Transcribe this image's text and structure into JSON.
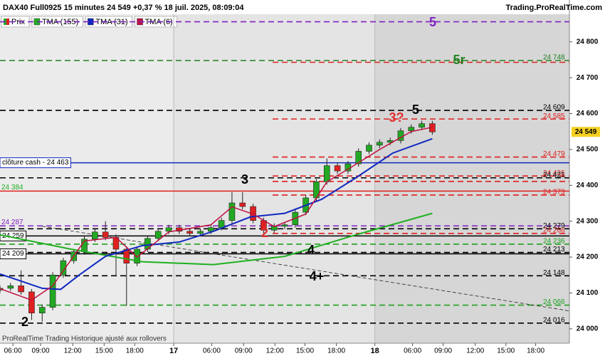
{
  "chart_data": {
    "type": "candlestick",
    "title": "DAX40 Full0925 15 minutes 24 549 +0,37 % 18 juil. 2025, 08:09:04",
    "source": "Trading.ProRealTime.com",
    "footnote": "ProRealTime Trading  Historique ajusté aux rollovers",
    "price_name": "Prix",
    "up_color": "#22a822",
    "down_color": "#e02020",
    "x": [
      0,
      4,
      8,
      12,
      16,
      20,
      24,
      28,
      32,
      36,
      40,
      44,
      48,
      52,
      56,
      60,
      64,
      68,
      72,
      76,
      80,
      84,
      88,
      92,
      96,
      100,
      104,
      108,
      112,
      116,
      120,
      124,
      128,
      132,
      136,
      140,
      144,
      148,
      152,
      156,
      160,
      164
    ],
    "open": [
      24108,
      24113,
      24120,
      24103,
      24044,
      24060,
      24150,
      24190,
      24215,
      24250,
      24270,
      24255,
      24222,
      24183,
      24222,
      24252,
      24272,
      24282,
      24272,
      24266,
      24272,
      24282,
      24302,
      24351,
      24341,
      24302,
      24275,
      24286,
      24290,
      24325,
      24365,
      24410,
      24455,
      24440,
      24460,
      24495,
      24512,
      24520,
      24525,
      24552,
      24562,
      24572
    ],
    "high": [
      24121,
      24128,
      24163,
      24111,
      24068,
      24158,
      24198,
      24223,
      24258,
      24278,
      24300,
      24263,
      24230,
      24230,
      24260,
      24280,
      24290,
      24290,
      24280,
      24280,
      24290,
      24310,
      24381,
      24381,
      24349,
      24310,
      24294,
      24298,
      24333,
      24373,
      24418,
      24475,
      24463,
      24468,
      24503,
      24520,
      24528,
      24533,
      24560,
      24570,
      24580,
      24580
    ],
    "low": [
      24100,
      24105,
      24095,
      24025,
      24020,
      24052,
      24142,
      24182,
      24207,
      24242,
      24247,
      24150,
      24064,
      24175,
      24214,
      24244,
      24264,
      24264,
      24258,
      24258,
      24264,
      24274,
      24294,
      24333,
      24294,
      24262,
      24267,
      24278,
      24282,
      24317,
      24357,
      24402,
      24432,
      24432,
      24452,
      24487,
      24504,
      24512,
      24517,
      24544,
      24554,
      24541
    ],
    "close": [
      24113,
      24120,
      24103,
      24044,
      24060,
      24150,
      24190,
      24215,
      24250,
      24270,
      24255,
      24222,
      24183,
      24222,
      24252,
      24272,
      24282,
      24272,
      24266,
      24272,
      24282,
      24302,
      24351,
      24341,
      24302,
      24275,
      24286,
      24290,
      24325,
      24365,
      24410,
      24455,
      24440,
      24460,
      24495,
      24512,
      24520,
      24525,
      24552,
      24562,
      24572,
      24549
    ],
    "series": [
      {
        "name": "TMA (155)",
        "color": "#20b020",
        "x": [
          0,
          27,
          54,
          81,
          108,
          135,
          164
        ],
        "values": [
          24262,
          24222,
          24187,
          24179,
          24202,
          24262,
          24322
        ]
      },
      {
        "name": "TMA (31)",
        "color": "#1028c0",
        "x": [
          0,
          8,
          16,
          23,
          30,
          40,
          54,
          68,
          81,
          95,
          108,
          122,
          135,
          149,
          164
        ],
        "values": [
          24153,
          24133,
          24113,
          24110,
          24150,
          24202,
          24232,
          24242,
          24272,
          24312,
          24322,
          24361,
          24421,
          24490,
          24530
        ]
      },
      {
        "name": "TMA (6)",
        "color": "#c01040",
        "x": [
          0,
          12,
          20,
          32,
          44,
          52,
          64,
          80,
          88,
          96,
          104,
          116,
          124,
          132,
          144,
          156,
          164
        ],
        "values": [
          24112,
          24080,
          24120,
          24245,
          24255,
          24200,
          24270,
          24290,
          24340,
          24320,
          24285,
          24320,
          24410,
          24445,
          24500,
          24550,
          24562
        ]
      }
    ],
    "levels": [
      {
        "value": 24856,
        "color": "#8020c0",
        "style": "dashed",
        "scope": "all"
      },
      {
        "value": 24748,
        "color": "#208020",
        "style": "dashed",
        "scope": "all",
        "label": "24 748",
        "side": "right"
      },
      {
        "value": 24743,
        "color": "#e02020",
        "style": "dashed",
        "scope": "recent"
      },
      {
        "value": 24609,
        "color": "#000000",
        "style": "dashed",
        "scope": "all",
        "label": "24 609",
        "side": "right"
      },
      {
        "value": 24585,
        "color": "#e02020",
        "style": "dashed",
        "scope": "recent",
        "label": "24 585",
        "side": "right"
      },
      {
        "value": 24549,
        "color": "#f5d020",
        "style": "box",
        "scope": "none",
        "label": "24 549",
        "side": "axis"
      },
      {
        "value": 24479,
        "color": "#e02020",
        "style": "dashed",
        "scope": "recent",
        "label": "24 479",
        "side": "right"
      },
      {
        "value": 24463,
        "color": "#1028c0",
        "style": "solid",
        "scope": "all",
        "label": "clôture cash -  24 463",
        "side": "left"
      },
      {
        "value": 24426,
        "color": "#e02020",
        "style": "dashed",
        "scope": "recent",
        "label": "24 426",
        "side": "right"
      },
      {
        "value": 24421,
        "color": "#000000",
        "style": "dashed",
        "scope": "all",
        "label": "24 421",
        "side": "right"
      },
      {
        "value": 24411,
        "color": "#e02020",
        "style": "dashed",
        "scope": "recent"
      },
      {
        "value": 24384,
        "color": "#e02020",
        "style": "solid",
        "scope": "all",
        "label": "24 384",
        "side": "left-plain",
        "label_color": "#20b020"
      },
      {
        "value": 24373,
        "color": "#e02020",
        "style": "dashed",
        "scope": "recent",
        "label": "24 373",
        "side": "right"
      },
      {
        "value": 24287,
        "color": "#8020c0",
        "style": "dashed",
        "scope": "all",
        "label": "24 287",
        "side": "left-plain"
      },
      {
        "value": 24279,
        "color": "#000000",
        "style": "dashed",
        "scope": "all",
        "label": "24 279",
        "side": "right"
      },
      {
        "value": 24266,
        "color": "#e02020",
        "style": "dashed",
        "scope": "recent",
        "label": "24 266",
        "side": "right"
      },
      {
        "value": 24259,
        "color": "#000000",
        "style": "solid",
        "scope": "all",
        "label": "24 259",
        "side": "left"
      },
      {
        "value": 24236,
        "color": "#20a020",
        "style": "dashed",
        "scope": "all",
        "label": "24 236",
        "side": "right"
      },
      {
        "value": 24213,
        "color": "#000000",
        "style": "dashed",
        "scope": "all",
        "label": "24 213",
        "side": "right"
      },
      {
        "value": 24209,
        "color": "#000000",
        "style": "solid",
        "scope": "all",
        "label": "24 209",
        "side": "left"
      },
      {
        "value": 24148,
        "color": "#000000",
        "style": "dashed",
        "scope": "all",
        "label": "24 148",
        "side": "right"
      },
      {
        "value": 24066,
        "color": "#20a020",
        "style": "dashed",
        "scope": "all",
        "label": "24 066",
        "side": "right"
      },
      {
        "value": 24016,
        "color": "#000000",
        "style": "dashed",
        "scope": "all",
        "label": "24 016",
        "side": "right"
      }
    ],
    "trendline": {
      "x": [
        16,
        216
      ],
      "values": [
        24286,
        24050
      ]
    },
    "annotations": [
      {
        "text": "2",
        "color": "#000000"
      },
      {
        "text": "5",
        "color": "#8020c0"
      },
      {
        "text": "5r",
        "color": "#208020"
      },
      {
        "text": "3",
        "color": "#000000"
      },
      {
        "text": "2",
        "color": "#e03030"
      },
      {
        "text": "3?",
        "color": "#e03030"
      },
      {
        "text": "5",
        "color": "#000000"
      },
      {
        "text": "4",
        "color": "#000000"
      },
      {
        "text": "4+",
        "color": "#000000"
      }
    ],
    "xlim": [
      0,
      216
    ],
    "ylim": [
      23960,
      24877
    ],
    "xticks": [
      {
        "value": 4.9,
        "label": "06:00"
      },
      {
        "value": 15.4,
        "label": "09:00"
      },
      {
        "value": 27.6,
        "label": "12:00"
      },
      {
        "value": 39.5,
        "label": "15:00"
      },
      {
        "value": 51.1,
        "label": "18:00"
      },
      {
        "value": 65.9,
        "label": "17"
      },
      {
        "value": 80.3,
        "label": "06:00"
      },
      {
        "value": 92.4,
        "label": "09:00"
      },
      {
        "value": 104.3,
        "label": "12:00"
      },
      {
        "value": 115.7,
        "label": "15:00"
      },
      {
        "value": 127.6,
        "label": "18:00"
      },
      {
        "value": 142.2,
        "label": "18"
      },
      {
        "value": 156.5,
        "label": "06:00"
      },
      {
        "value": 168.1,
        "label": "09:00"
      },
      {
        "value": 180.3,
        "label": "12:00"
      },
      {
        "value": 191.9,
        "label": "15:00"
      },
      {
        "value": 203.2,
        "label": "18:00"
      }
    ],
    "yticks": [
      {
        "value": 24000,
        "label": "24 000"
      },
      {
        "value": 24100,
        "label": "24 100"
      },
      {
        "value": 24200,
        "label": "24 200"
      },
      {
        "value": 24300,
        "label": "24 300"
      },
      {
        "value": 24400,
        "label": "24 400"
      },
      {
        "value": 24500,
        "label": "24 500"
      },
      {
        "value": 24600,
        "label": "24 600"
      },
      {
        "value": 24700,
        "label": "24 700"
      },
      {
        "value": 24800,
        "label": "24 800"
      }
    ]
  }
}
